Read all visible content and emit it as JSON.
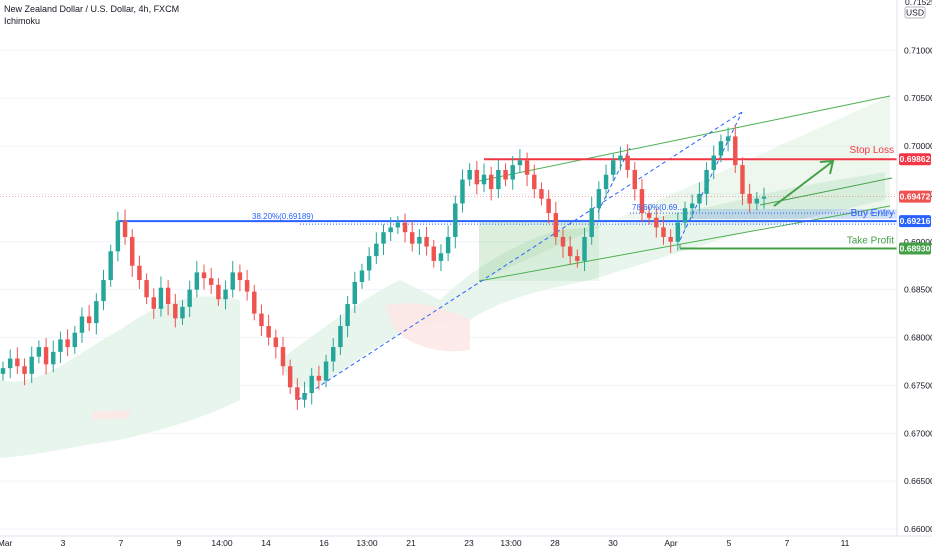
{
  "header": {
    "symbol_line": "New Zealand Dollar / U.S. Dollar, 4h, FXCM",
    "indicator": "Ichimoku"
  },
  "colors": {
    "up": "#26a69a",
    "down": "#ef5350",
    "stop": "#f23645",
    "entry": "#2962ff",
    "take": "#43a047",
    "channel": "#4caf50",
    "cloud_bull": "#e6f4ea",
    "cloud_bear": "#fde8e8"
  },
  "chart_data": {
    "type": "candlestick",
    "currency": "USD",
    "ylim": [
      0.66,
      0.71525
    ],
    "y_ticks": [
      "0.71000",
      "0.70500",
      "0.70000",
      "0.69500",
      "0.69000",
      "0.68500",
      "0.68000",
      "0.67500",
      "0.67000",
      "0.66500",
      "0.66000"
    ],
    "top_tick": "0.71525",
    "x_labels": [
      "Mar",
      "3",
      "7",
      "9",
      "14:00",
      "14",
      "16",
      "13:00",
      "21",
      "23",
      "13:00",
      "28",
      "30",
      "Apr",
      "5",
      "7",
      "11"
    ],
    "last_price": "0.69472",
    "levels": {
      "stop_loss": {
        "label": "Stop Loss",
        "value": 0.69862,
        "badge": "0.69862"
      },
      "buy_entry": {
        "label": "Buy Entry",
        "value": 0.69216,
        "badge": "0.69216"
      },
      "take_profit": {
        "label": "Take Profit",
        "value": 0.6893,
        "badge": "0.68930"
      }
    },
    "fib_labels": {
      "fib_382": "38.20%(0.69189)",
      "fib_786": "78.60%(0.69..."
    },
    "closes": [
      0.6768,
      0.6778,
      0.677,
      0.6762,
      0.678,
      0.679,
      0.6772,
      0.6785,
      0.6798,
      0.679,
      0.6805,
      0.6822,
      0.6815,
      0.6838,
      0.686,
      0.689,
      0.6922,
      0.6905,
      0.6875,
      0.686,
      0.6842,
      0.683,
      0.6852,
      0.6835,
      0.682,
      0.6832,
      0.685,
      0.6868,
      0.6862,
      0.6855,
      0.684,
      0.685,
      0.6868,
      0.686,
      0.6848,
      0.6825,
      0.6812,
      0.68,
      0.679,
      0.677,
      0.6748,
      0.6735,
      0.6742,
      0.676,
      0.6755,
      0.6775,
      0.679,
      0.6812,
      0.6835,
      0.6858,
      0.687,
      0.6885,
      0.6898,
      0.691,
      0.6915,
      0.692,
      0.691,
      0.6898,
      0.6905,
      0.6895,
      0.688,
      0.6888,
      0.6905,
      0.694,
      0.6965,
      0.6975,
      0.696,
      0.697,
      0.6955,
      0.6975,
      0.6965,
      0.698,
      0.6985,
      0.697,
      0.6955,
      0.6945,
      0.693,
      0.6905,
      0.6895,
      0.6885,
      0.688,
      0.6905,
      0.6935,
      0.6955,
      0.697,
      0.6985,
      0.699,
      0.6975,
      0.6955,
      0.693,
      0.6925,
      0.6915,
      0.6905,
      0.69,
      0.692,
      0.6935,
      0.694,
      0.695,
      0.6975,
      0.699,
      0.7005,
      0.701,
      0.698,
      0.695,
      0.694,
      0.6945,
      0.6947
    ]
  }
}
